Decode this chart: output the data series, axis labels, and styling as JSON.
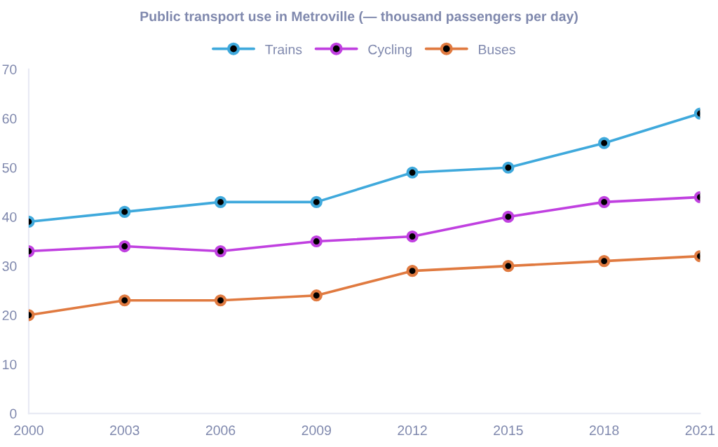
{
  "chart_data": {
    "type": "line",
    "title": "Public transport use in Metroville (— thousand passengers per day)",
    "categories": [
      "2000",
      "2003",
      "2006",
      "2009",
      "2012",
      "2015",
      "2018",
      "2021"
    ],
    "series": [
      {
        "name": "Trains",
        "color": "#3fa9dc",
        "values": [
          39,
          41,
          43,
          43,
          49,
          50,
          55,
          61
        ]
      },
      {
        "name": "Cycling",
        "color": "#c040e0",
        "values": [
          33,
          34,
          33,
          35,
          36,
          40,
          43,
          44
        ]
      },
      {
        "name": "Buses",
        "color": "#e07a40",
        "values": [
          20,
          23,
          23,
          24,
          29,
          30,
          31,
          32
        ]
      }
    ],
    "ylim": [
      0,
      70
    ],
    "yticks": [
      0,
      10,
      20,
      30,
      40,
      50,
      60,
      70
    ],
    "grid": false,
    "legend": "top",
    "marker": "circle",
    "line_style": "solid"
  }
}
